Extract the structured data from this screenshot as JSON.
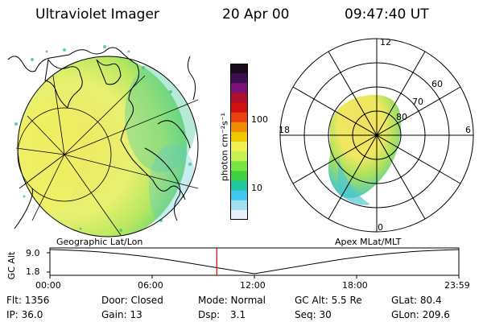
{
  "header": {
    "instrument": "Ultraviolet Imager",
    "date": "20 Apr 00",
    "time": "09:47:40 UT"
  },
  "colorbar": {
    "unit": "photon cm⁻²s⁻¹",
    "ticks": [
      "100",
      "10"
    ],
    "colors": [
      "#1a0a1a",
      "#3a1050",
      "#7a1078",
      "#b00f2c",
      "#d01010",
      "#e84010",
      "#f08c00",
      "#f0c800",
      "#f0f050",
      "#c8f050",
      "#78e640",
      "#40d040",
      "#20c8a0",
      "#40c8f0",
      "#a0e0f0",
      "#e8f0f8"
    ]
  },
  "left_map": {
    "label": "Geographic Lat/Lon"
  },
  "polar": {
    "label": "Apex MLat/MLT",
    "mlt_labels": {
      "top": "12",
      "left": "18",
      "right": "6",
      "bottom": "0"
    },
    "lat_labels": [
      "80",
      "70",
      "60"
    ]
  },
  "altitude_plot": {
    "ylabel": "GC Alt",
    "yticks": [
      "9.0",
      "1.8"
    ],
    "xticks": [
      "00:00",
      "06:00",
      "12:00",
      "18:00",
      "23:59"
    ],
    "cursor_time_hours": 9.794,
    "cursor_color": "#e00000"
  },
  "info": {
    "flt": "Flt: 1356",
    "door": "Door: Closed",
    "mode": "Mode: Normal",
    "gc_alt": "GC Alt: 5.5 Re",
    "glat": "GLat: 80.4",
    "ip": "IP: 36.0",
    "gain": "Gain: 13",
    "dsp_label": "Dsp:",
    "dsp_value": "3.1",
    "seq": "Seq: 30",
    "glon": "GLon: 209.6"
  }
}
